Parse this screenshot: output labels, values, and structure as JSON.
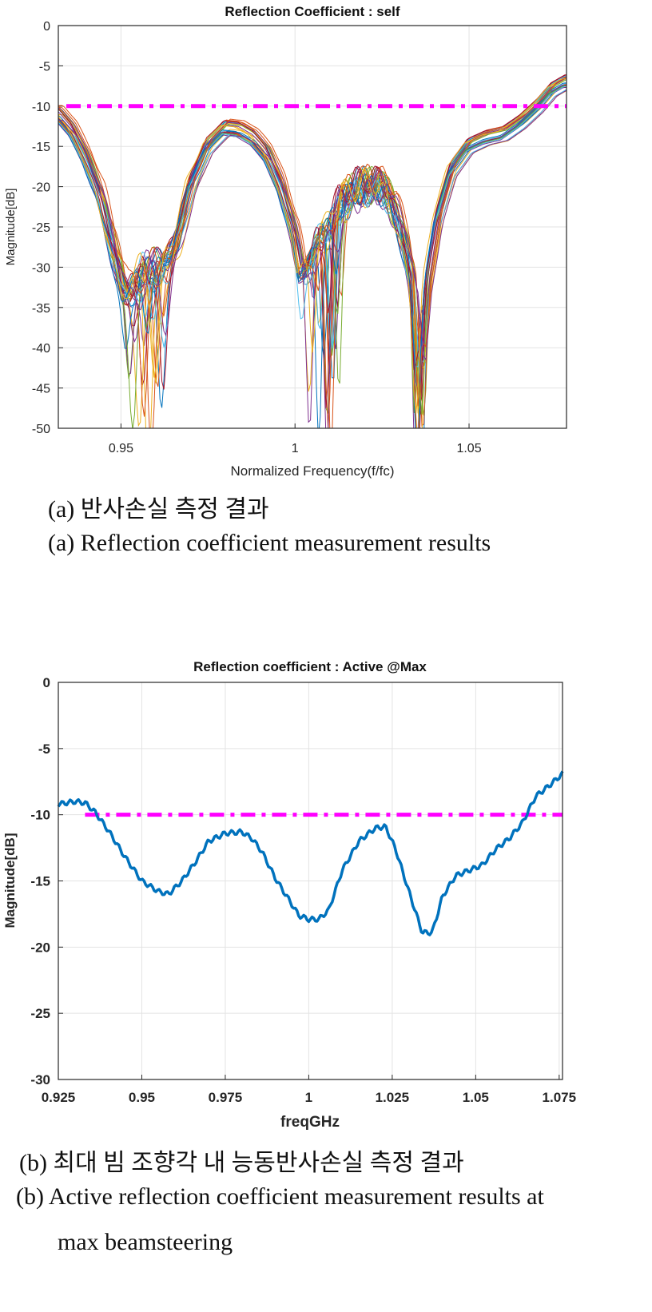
{
  "chart_data": [
    {
      "type": "line",
      "title": "Reflection Coefficient : self",
      "xlabel": "Normalized Frequency(f/fc)",
      "ylabel": "Magnitude[dB]",
      "xlim": [
        0.932,
        1.078
      ],
      "ylim": [
        -50,
        0
      ],
      "xticks": [
        0.95,
        1,
        1.05
      ],
      "xtick_labels": [
        "0.95",
        "1",
        "1.05"
      ],
      "yticks": [
        0,
        -5,
        -10,
        -15,
        -20,
        -25,
        -30,
        -35,
        -40,
        -45,
        -50
      ],
      "ytick_labels": [
        "0",
        "-5",
        "-10",
        "-15",
        "-20",
        "-25",
        "-30",
        "-35",
        "-40",
        "-45",
        "-50"
      ],
      "grid": true,
      "threshold": {
        "y": -10,
        "style": "dash-dot",
        "color": "#ff00ff"
      },
      "series_count": 32,
      "series_colors": [
        "#0072bd",
        "#d95319",
        "#edb120",
        "#7e2f8e",
        "#77ac30",
        "#4dbeee",
        "#a2142f"
      ],
      "base_curve": {
        "x": [
          0.932,
          0.936,
          0.94,
          0.944,
          0.948,
          0.951,
          0.954,
          0.957,
          0.96,
          0.963,
          0.966,
          0.97,
          0.975,
          0.98,
          0.984,
          0.988,
          0.992,
          0.996,
          1.0,
          1.002,
          1.004,
          1.006,
          1.008,
          1.01,
          1.013,
          1.016,
          1.019,
          1.022,
          1.025,
          1.028,
          1.031,
          1.034,
          1.036,
          1.038,
          1.041,
          1.045,
          1.05,
          1.055,
          1.06,
          1.065,
          1.07,
          1.074,
          1.078
        ],
        "y": [
          -11,
          -13,
          -16.5,
          -21,
          -28,
          -33,
          -33,
          -30,
          -30,
          -30,
          -27,
          -20,
          -15,
          -12.8,
          -13,
          -14,
          -16,
          -20,
          -26,
          -31,
          -30,
          -27,
          -26,
          -25,
          -22,
          -21,
          -20,
          -20,
          -20,
          -22,
          -26,
          -32,
          -42,
          -32,
          -24,
          -18,
          -15,
          -14,
          -13.5,
          -12,
          -10,
          -8,
          -7
        ]
      }
    },
    {
      "type": "line",
      "title": "Reflection coefficient : Active @Max",
      "xlabel": "freqGHz",
      "ylabel": "Magnitude[dB]",
      "xlim": [
        0.925,
        1.076
      ],
      "ylim": [
        -30,
        0
      ],
      "xticks": [
        0.925,
        0.95,
        0.975,
        1,
        1.025,
        1.05,
        1.075
      ],
      "xtick_labels": [
        "0.925",
        "0.95",
        "0.975",
        "1",
        "1.025",
        "1.05",
        "1.075"
      ],
      "yticks": [
        0,
        -5,
        -10,
        -15,
        -20,
        -25,
        -30
      ],
      "ytick_labels": [
        "0",
        "-5",
        "-10",
        "-15",
        "-20",
        "-25",
        "-30"
      ],
      "grid": true,
      "threshold": {
        "y": -10,
        "x_start": 0.933,
        "style": "dash-dot",
        "color": "#ff00ff"
      },
      "series": [
        {
          "name": "Active @Max",
          "color": "#0072bd",
          "x": [
            0.925,
            0.93,
            0.933,
            0.936,
            0.94,
            0.945,
            0.95,
            0.955,
            0.958,
            0.962,
            0.966,
            0.97,
            0.975,
            0.98,
            0.983,
            0.986,
            0.99,
            0.994,
            0.997,
            1.0,
            1.003,
            1.006,
            1.01,
            1.015,
            1.02,
            1.023,
            1.026,
            1.03,
            1.034,
            1.037,
            1.04,
            1.044,
            1.048,
            1.052,
            1.056,
            1.06,
            1.064,
            1.068,
            1.072,
            1.076
          ],
          "y": [
            -9.2,
            -9.0,
            -9.1,
            -9.8,
            -11.2,
            -13.2,
            -15.0,
            -15.8,
            -16.0,
            -15.0,
            -13.6,
            -12.0,
            -11.4,
            -11.3,
            -11.8,
            -12.8,
            -14.8,
            -16.4,
            -17.6,
            -17.9,
            -17.9,
            -17.2,
            -14.2,
            -12.0,
            -11.0,
            -10.9,
            -12.6,
            -15.8,
            -18.9,
            -18.9,
            -16.2,
            -14.6,
            -14.2,
            -13.8,
            -12.6,
            -11.8,
            -10.6,
            -8.6,
            -7.8,
            -6.9
          ]
        }
      ]
    }
  ],
  "captions": {
    "a_ko": "(a) 반사손실 측정 결과",
    "a_en": "(a) Reflection coefficient measurement results",
    "b_ko": "(b) 최대 빔 조향각 내 능동반사손실 측정 결과",
    "b_en_line1": "(b) Active reflection coefficient measurement results at",
    "b_en_line2": "max beamsteering"
  }
}
